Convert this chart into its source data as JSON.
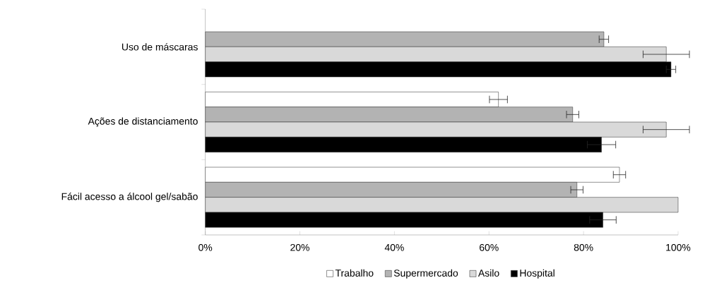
{
  "chart_data": {
    "type": "bar",
    "orientation": "horizontal",
    "categories": [
      "Uso de máscaras",
      "Ações de distanciamento",
      "Fácil acesso a álcool gel/sabão"
    ],
    "series": [
      {
        "name": "Trabalho",
        "color": "#ffffff",
        "values": [
          null,
          62,
          87.6
        ],
        "errors": [
          null,
          1.9,
          1.3
        ]
      },
      {
        "name": "Supermercado",
        "color": "#b3b3b3",
        "values": [
          84.3,
          77.7,
          78.6
        ],
        "errors": [
          1,
          1.3,
          1.3
        ]
      },
      {
        "name": "Asilo",
        "color": "#d9d9d9",
        "values": [
          97.5,
          97.5,
          100
        ],
        "errors": [
          4.9,
          4.9,
          null
        ]
      },
      {
        "name": "Hospital",
        "color": "#000000",
        "values": [
          98.5,
          83.8,
          84.1
        ],
        "errors": [
          1,
          3,
          2.8
        ]
      }
    ],
    "xlim": [
      0,
      100
    ],
    "xticks": [
      {
        "value": 0,
        "label": "0%"
      },
      {
        "value": 20,
        "label": "20%"
      },
      {
        "value": 40,
        "label": "40%"
      },
      {
        "value": 60,
        "label": "60%"
      },
      {
        "value": 80,
        "label": "80%"
      },
      {
        "value": 100,
        "label": "100%"
      }
    ],
    "grid": false,
    "legend": "bottom"
  }
}
